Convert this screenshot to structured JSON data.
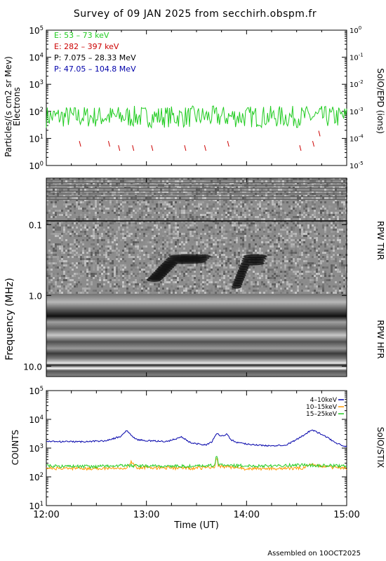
{
  "title": "Survey of 09 JAN 2025 from secchirh.obspm.fr",
  "footer": "Assembled on 10OCT2025",
  "colors": {
    "green": "#22cc22",
    "red": "#cc0000",
    "black": "#000000",
    "blue": "#0000aa",
    "orange": "#ff9900"
  },
  "chart_data": [
    {
      "type": "line",
      "panel": "particles",
      "ylabel": "Particles/(s cm2 sr Mev)",
      "ylabel2": "Electrons",
      "right_label": "SolO/EPD (ions)",
      "yscale": "log",
      "ylim": [
        1,
        100000
      ],
      "y_ticks": [
        "10^0",
        "10^1",
        "10^2",
        "10^3",
        "10^4",
        "10^5"
      ],
      "y2lim": [
        1e-05,
        1
      ],
      "y2_ticks": [
        "10^-5",
        "10^-4",
        "10^-3",
        "10^-2",
        "10^-1",
        "10^0"
      ],
      "legend": [
        {
          "label": "E: 53 – 73 keV",
          "color": "#22cc22"
        },
        {
          "label": "E: 282 – 397 keV",
          "color": "#cc0000"
        },
        {
          "label": "P: 7.075 – 28.33 MeV",
          "color": "#000000"
        },
        {
          "label": "P: 47.05 – 104.8 MeV",
          "color": "#0000aa"
        }
      ],
      "series": [
        {
          "name": "E: 53 – 73 keV",
          "color": "#22cc22",
          "level": 70,
          "min": 25,
          "max": 160
        },
        {
          "name": "E: 282 – 397 keV",
          "color": "#cc0000",
          "segments": [
            [
              12.33,
              5
            ],
            [
              12.62,
              5
            ],
            [
              12.72,
              3.5
            ],
            [
              12.86,
              3.5
            ],
            [
              13.05,
              3.5
            ],
            [
              13.38,
              3.5
            ],
            [
              13.58,
              3.5
            ],
            [
              13.81,
              5
            ],
            [
              14.53,
              3.5
            ],
            [
              14.66,
              5
            ],
            [
              14.72,
              12
            ]
          ]
        }
      ]
    },
    {
      "type": "heatmap",
      "panel": "radio",
      "ylabel": "Frequency (MHz)",
      "yscale": "log",
      "inverted": true,
      "y_ticks": [
        "0.1",
        "1.0",
        "10.0"
      ],
      "right_labels": [
        "RPW TNR",
        "RPW HFR"
      ],
      "bursts": [
        {
          "t_start": 13.0,
          "t_end": 13.25,
          "f_low": 0.28,
          "f_high": 0.6
        },
        {
          "t_start": 13.85,
          "t_end": 13.98,
          "f_low": 0.28,
          "f_high": 0.75
        }
      ]
    },
    {
      "type": "line",
      "panel": "stix",
      "ylabel": "COUNTS",
      "right_label": "SolO/STIX",
      "yscale": "log",
      "ylim": [
        10,
        100000
      ],
      "y_ticks": [
        "10^1",
        "10^2",
        "10^3",
        "10^4",
        "10^5"
      ],
      "legend": [
        {
          "label": "4–10keV",
          "color": "#0000aa"
        },
        {
          "label": "10–15keV",
          "color": "#ff9900"
        },
        {
          "label": "15–25keV",
          "color": "#22cc22"
        }
      ],
      "series": [
        {
          "name": "4–10keV",
          "color": "#0000aa",
          "x": [
            12.0,
            12.3,
            12.6,
            12.75,
            12.8,
            12.84,
            12.9,
            13.0,
            13.2,
            13.35,
            13.45,
            13.6,
            13.65,
            13.7,
            13.75,
            13.8,
            13.85,
            13.9,
            14.0,
            14.2,
            14.4,
            14.55,
            14.65,
            14.75,
            14.9,
            15.0
          ],
          "y": [
            1700,
            1650,
            1800,
            2600,
            4200,
            3000,
            2000,
            1800,
            1700,
            2400,
            1500,
            1300,
            1600,
            3300,
            2600,
            3100,
            1900,
            1600,
            1400,
            1200,
            1300,
            2500,
            4400,
            3000,
            1500,
            1100
          ]
        },
        {
          "name": "10–15keV",
          "color": "#ff9900",
          "x": [
            12.0,
            12.5,
            12.8,
            12.85,
            12.9,
            13.5,
            13.68,
            13.7,
            13.72,
            14.0,
            14.55,
            14.65,
            14.75,
            15.0
          ],
          "y": [
            200,
            195,
            210,
            330,
            210,
            200,
            220,
            480,
            240,
            190,
            200,
            280,
            230,
            200
          ]
        },
        {
          "name": "15–25keV",
          "color": "#22cc22",
          "x": [
            12.0,
            12.5,
            12.8,
            12.9,
            13.5,
            13.68,
            13.7,
            13.72,
            14.0,
            14.6,
            14.7,
            15.0
          ],
          "y": [
            240,
            230,
            250,
            240,
            235,
            250,
            600,
            260,
            240,
            260,
            250,
            240
          ]
        }
      ]
    }
  ],
  "x_axis": {
    "label": "Time (UT)",
    "ticks": [
      "12:00",
      "13:00",
      "14:00",
      "15:00"
    ],
    "range": [
      12,
      15
    ]
  }
}
